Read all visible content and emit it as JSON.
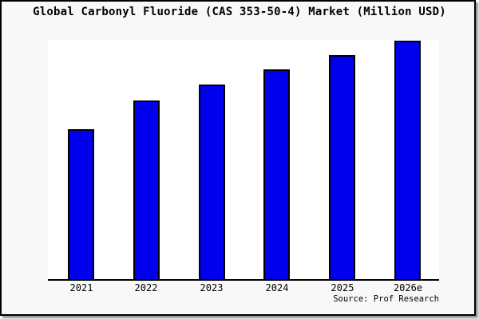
{
  "frame": {
    "title": "Global Carbonyl Fluoride (CAS 353-50-4) Market (Million USD)",
    "source": "Source: Prof Research"
  },
  "colors": {
    "bar_fill": "#0000ee",
    "bar_border": "#000000",
    "frame_background": "#f8f8f8",
    "frame_border": "#000000",
    "plot_background": "#ffffff",
    "axis_line": "#000000",
    "shadow": "#999999",
    "text": "#000000"
  },
  "chart_data": {
    "type": "bar",
    "title": "Global Carbonyl Fluoride (CAS 353-50-4) Market (Million USD)",
    "unit": "Million USD",
    "categories": [
      "2021",
      "2022",
      "2023",
      "2024",
      "2025",
      "2026e"
    ],
    "values_relative": [
      63,
      75,
      81.5,
      88,
      94,
      100
    ],
    "xlabel": "",
    "ylabel": "",
    "y_axis_labels_visible": false,
    "gridlines": false,
    "legend": false,
    "note": "No y-axis scale or value labels are shown in the chart; values are relative bar heights normalized so that 2026e = 100.",
    "source": "Source: Prof Research"
  }
}
